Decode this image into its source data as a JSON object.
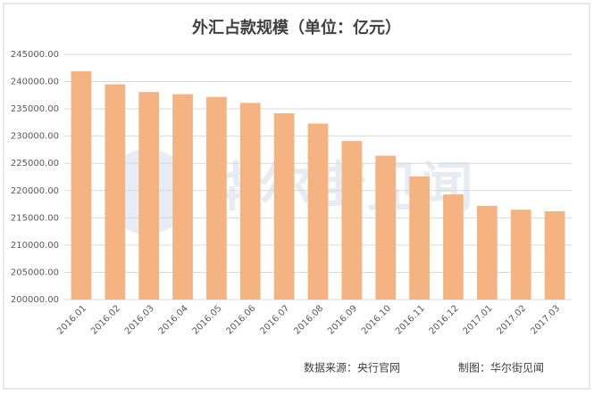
{
  "chart_data": {
    "type": "bar",
    "title": "外汇占款规模（单位：亿元）",
    "categories": [
      "2016.01",
      "2016.02",
      "2016.03",
      "2016.04",
      "2016.05",
      "2016.06",
      "2016.07",
      "2016.08",
      "2016.09",
      "2016.10",
      "2016.11",
      "2016.12",
      "2017.01",
      "2017.02",
      "2017.03"
    ],
    "values": [
      241900,
      239500,
      238100,
      237700,
      237200,
      236100,
      234200,
      232300,
      229100,
      226400,
      222600,
      219300,
      217200,
      216500,
      216200
    ],
    "color": "#f5b382",
    "ylim": [
      200000,
      245000
    ],
    "yticks": [
      {
        "value": 200000,
        "label": "200000.00"
      },
      {
        "value": 205000,
        "label": "205000.00"
      },
      {
        "value": 210000,
        "label": "210000.00"
      },
      {
        "value": 215000,
        "label": "215000.00"
      },
      {
        "value": 220000,
        "label": "220000.00"
      },
      {
        "value": 225000,
        "label": "225000.00"
      },
      {
        "value": 230000,
        "label": "230000.00"
      },
      {
        "value": 235000,
        "label": "235000.00"
      },
      {
        "value": 240000,
        "label": "240000.00"
      },
      {
        "value": 245000,
        "label": "245000.00"
      }
    ],
    "grid": true,
    "watermark": "华尔街见闻",
    "source": "数据来源：央行官网",
    "credit": "制图：华尔街见闻"
  }
}
